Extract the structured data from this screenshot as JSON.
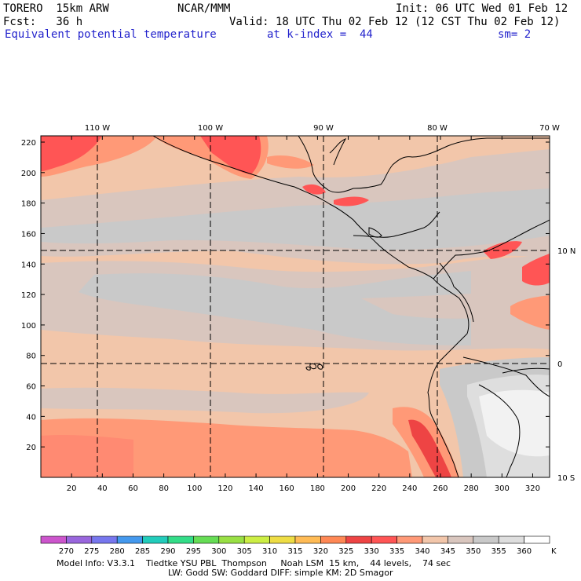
{
  "header": {
    "model": "TORERO  15km ARW",
    "org": "NCAR/MMM",
    "init": "Init: 06 UTC Wed 01 Feb 12",
    "fcst": "Fcst:   36 h",
    "valid": "Valid: 18 UTC Thu 02 Feb 12 (12 CST Thu 02 Feb 12)",
    "field": "Equivalent potential temperature",
    "level": "at k-index =  44",
    "smooth": "sm= 2"
  },
  "map": {
    "lon_labels": [
      "110 W",
      "100 W",
      "90 W",
      "80 W",
      "70 W"
    ],
    "lat_labels": [
      "10 N",
      "0",
      "10 S"
    ],
    "y_ticks": [
      "20",
      "40",
      "60",
      "80",
      "100",
      "120",
      "140",
      "160",
      "180",
      "200",
      "220"
    ],
    "x_ticks": [
      "20",
      "40",
      "60",
      "80",
      "100",
      "120",
      "140",
      "160",
      "180",
      "200",
      "220",
      "240",
      "260",
      "280",
      "300",
      "320"
    ]
  },
  "colorbar": {
    "labels": [
      "270",
      "275",
      "280",
      "285",
      "290",
      "295",
      "300",
      "305",
      "310",
      "315",
      "320",
      "325",
      "330",
      "335",
      "340",
      "345",
      "350",
      "355",
      "360"
    ],
    "unit": "K",
    "colors": [
      "#cc55cc",
      "#9966dd",
      "#7777ee",
      "#4499ee",
      "#22ccbb",
      "#33dd88",
      "#66dd55",
      "#99e044",
      "#ccee44",
      "#eedd44",
      "#ffbb55",
      "#ff8855",
      "#ee4444",
      "#ff5555",
      "#ff9977",
      "#f2c6aa",
      "#d9c6be",
      "#c9c9c9",
      "#dedede",
      "#ffffff"
    ]
  },
  "footer": {
    "line1": "Model Info: V3.3.1    Tiedtke YSU PBL  Thompson     Noah LSM  15 km,    44 levels,    74 sec",
    "line2": "LW: Godd SW: Goddard DIFF: simple KM: 2D Smagor"
  }
}
